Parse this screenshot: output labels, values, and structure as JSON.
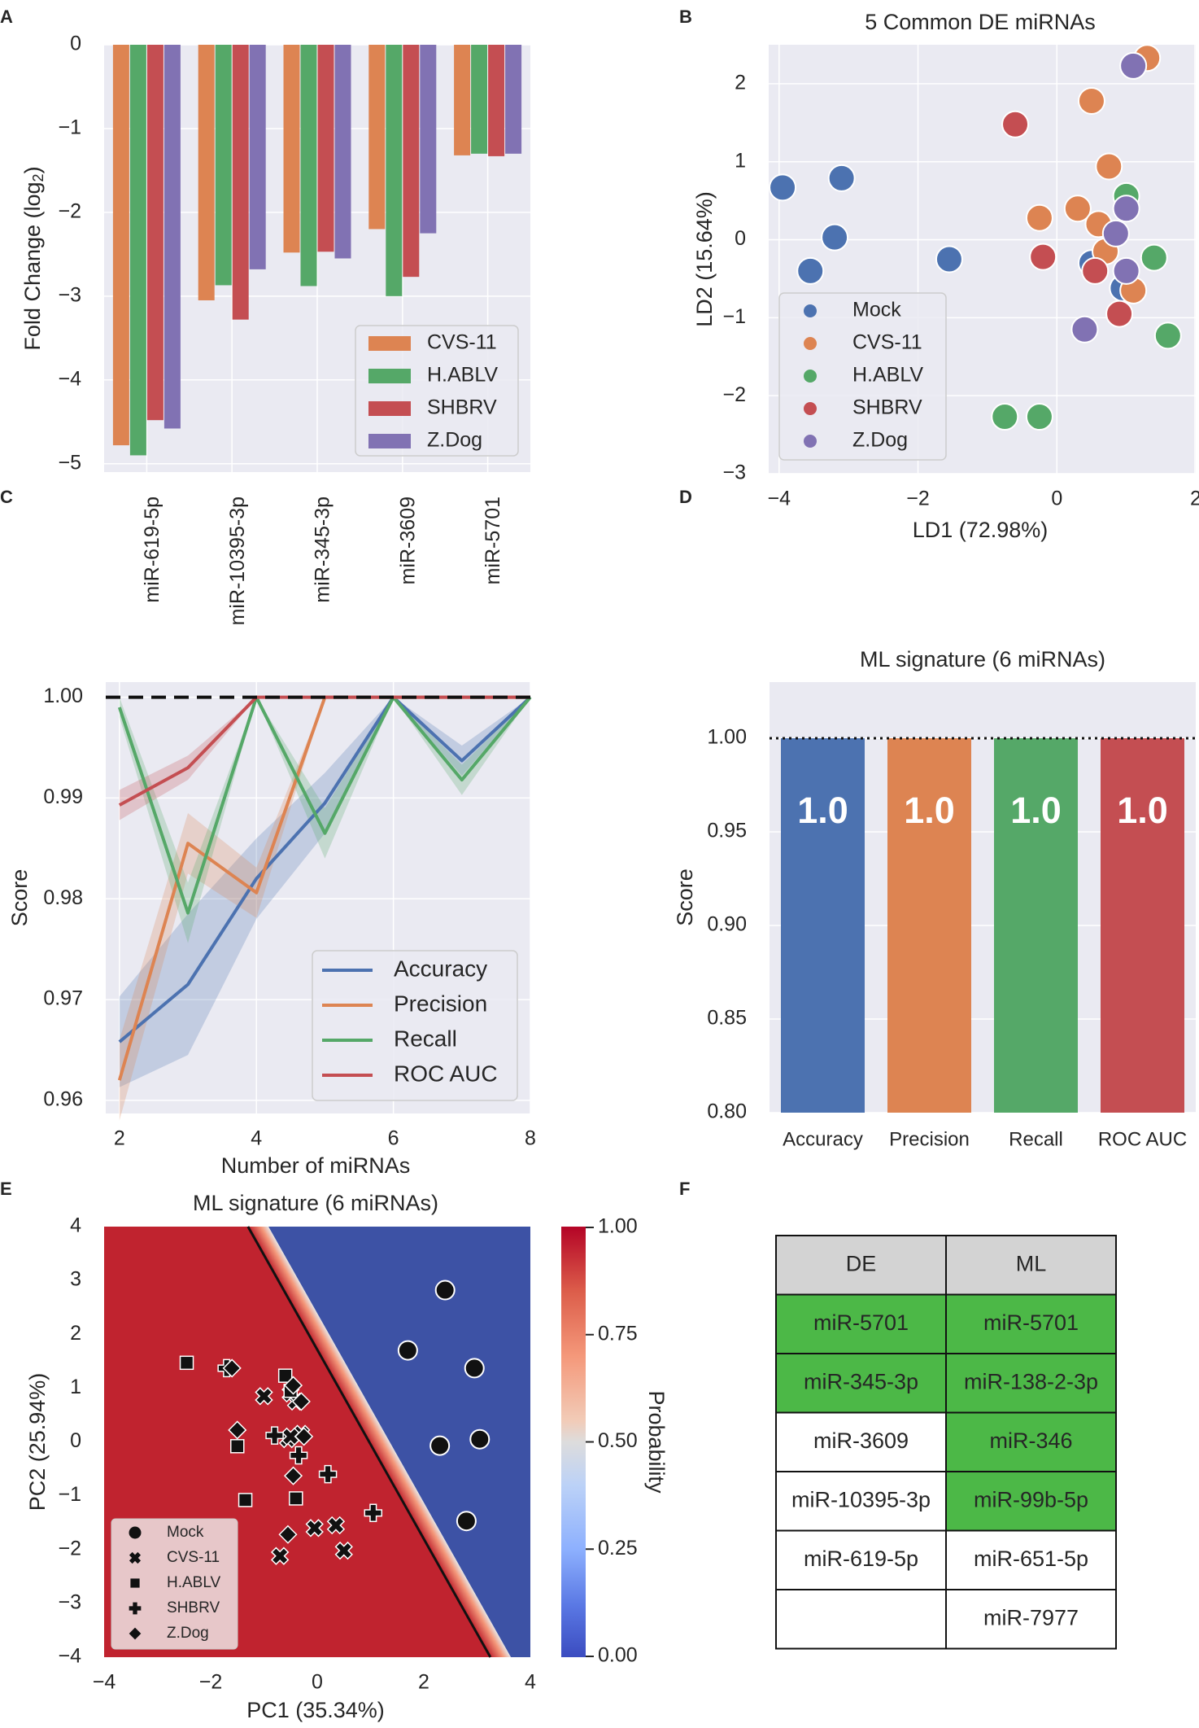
{
  "colors": {
    "blue": "#4c72b0",
    "orange": "#dd8452",
    "green": "#55a868",
    "red": "#c44e52",
    "purple": "#8172b3",
    "panel_bg": "#eaeaf2",
    "grid": "#ffffff",
    "green_cell": "#4cb847",
    "header_cell": "#d3d3d3",
    "region_red": "#c0232f",
    "region_blue": "#3d52a5"
  },
  "chart_data": [
    {
      "panel": "A",
      "type": "bar",
      "title": "",
      "xlabel": "",
      "ylabel_main": "Fold Change (log",
      "ylabel_sub": "2",
      "ylabel_end": ")",
      "ylim": [
        -5.1,
        0
      ],
      "yticks": [
        0,
        -1,
        -2,
        -3,
        -4,
        -5
      ],
      "categories": [
        "miR-619-5p",
        "miR-10395-3p",
        "miR-345-3p",
        "miR-3609",
        "miR-5701"
      ],
      "series": [
        {
          "name": "CVS-11",
          "color": "orange",
          "values": [
            -4.78,
            -3.05,
            -2.48,
            -2.2,
            -1.32
          ]
        },
        {
          "name": "H.ABLV",
          "color": "green",
          "values": [
            -4.9,
            -2.87,
            -2.88,
            -3.0,
            -1.3
          ]
        },
        {
          "name": "SHBRV",
          "color": "red",
          "values": [
            -4.48,
            -3.28,
            -2.47,
            -2.77,
            -1.33
          ]
        },
        {
          "name": "Z.Dog",
          "color": "purple",
          "values": [
            -4.58,
            -2.68,
            -2.55,
            -2.25,
            -1.3
          ]
        }
      ],
      "legend": "bottom-right"
    },
    {
      "panel": "B",
      "type": "scatter",
      "title": "5 Common DE miRNAs",
      "xlabel": "LD1 (72.98%)",
      "ylabel": "LD2 (15.64%)",
      "xlim": [
        -4.15,
        2
      ],
      "ylim": [
        -3,
        2.5
      ],
      "xticks": [
        -4,
        -2,
        0,
        2
      ],
      "yticks": [
        2,
        1,
        0,
        -1,
        -2,
        -3
      ],
      "series": [
        {
          "name": "Mock",
          "color": "blue",
          "points": [
            [
              -3.95,
              0.67
            ],
            [
              -3.1,
              0.79
            ],
            [
              -3.2,
              0.03
            ],
            [
              -3.55,
              -0.4
            ],
            [
              -1.55,
              -0.25
            ],
            [
              0.5,
              -0.3
            ],
            [
              0.95,
              -0.62
            ]
          ]
        },
        {
          "name": "CVS-11",
          "color": "orange",
          "points": [
            [
              1.3,
              2.33
            ],
            [
              0.5,
              1.78
            ],
            [
              0.75,
              0.94
            ],
            [
              0.3,
              0.4
            ],
            [
              -0.25,
              0.28
            ],
            [
              0.6,
              0.2
            ],
            [
              0.7,
              -0.15
            ],
            [
              1.1,
              -0.65
            ]
          ]
        },
        {
          "name": "H.ABLV",
          "color": "green",
          "points": [
            [
              1.0,
              0.56
            ],
            [
              1.4,
              -0.23
            ],
            [
              1.6,
              -1.23
            ],
            [
              -0.75,
              -2.27
            ],
            [
              -0.25,
              -2.27
            ]
          ]
        },
        {
          "name": "SHBRV",
          "color": "red",
          "points": [
            [
              -0.6,
              1.48
            ],
            [
              -0.2,
              -0.22
            ],
            [
              0.55,
              -0.4
            ],
            [
              0.9,
              -0.95
            ]
          ]
        },
        {
          "name": "Z.Dog",
          "color": "purple",
          "points": [
            [
              1.1,
              2.23
            ],
            [
              1.0,
              0.4
            ],
            [
              0.85,
              0.08
            ],
            [
              1.0,
              -0.4
            ],
            [
              0.4,
              -1.15
            ]
          ]
        }
      ],
      "legend": "lower-left"
    },
    {
      "panel": "C",
      "type": "line",
      "title": "",
      "xlabel": "Number of miRNAs",
      "ylabel": "Score",
      "xlim": [
        1.8,
        8
      ],
      "ylim": [
        0.9587,
        1.0015
      ],
      "xticks": [
        2,
        4,
        6,
        8
      ],
      "yticks": [
        1.0,
        0.99,
        0.98,
        0.97,
        0.96
      ],
      "x": [
        2,
        3,
        4,
        5,
        6,
        7,
        8
      ],
      "reference_line": 1.0,
      "series": [
        {
          "name": "Accuracy",
          "color": "blue",
          "values": [
            0.9658,
            0.9715,
            0.982,
            0.9895,
            1.0,
            0.9937,
            1.0
          ],
          "band": [
            0.0045,
            0.007,
            0.004,
            0.003,
            0.0,
            0.0015,
            0.0
          ]
        },
        {
          "name": "Precision",
          "color": "orange",
          "values": [
            0.962,
            0.9855,
            0.9806,
            1.0,
            1.0,
            1.0,
            1.0
          ],
          "band": [
            0.004,
            0.003,
            0.0025,
            0.0,
            0.0,
            0.0,
            0.0
          ]
        },
        {
          "name": "Recall",
          "color": "green",
          "values": [
            0.999,
            0.9786,
            1.0,
            0.9865,
            1.0,
            0.9918,
            1.0
          ],
          "band": [
            0.001,
            0.003,
            0.0,
            0.0025,
            0.0,
            0.0015,
            0.0
          ]
        },
        {
          "name": "ROC AUC",
          "color": "red",
          "values": [
            0.9893,
            0.993,
            1.0,
            1.0,
            1.0,
            1.0,
            1.0
          ],
          "band": [
            0.0015,
            0.0012,
            0.0,
            0.0,
            0.0,
            0.0,
            0.0
          ]
        }
      ],
      "legend": "bottom-right"
    },
    {
      "panel": "D",
      "type": "bar",
      "title": "ML signature (6 miRNAs)",
      "xlabel": "",
      "ylabel": "Score",
      "ylim": [
        0.8,
        1.03
      ],
      "yticks": [
        1.0,
        0.95,
        0.9,
        0.85,
        0.8
      ],
      "categories": [
        "Accuracy",
        "Precision",
        "Recall",
        "ROC AUC"
      ],
      "values": [
        1.0,
        1.0,
        1.0,
        1.0
      ],
      "bar_colors": [
        "blue",
        "orange",
        "green",
        "red"
      ],
      "data_labels": [
        "1.0",
        "1.0",
        "1.0",
        "1.0"
      ],
      "reference_line": 1.0
    },
    {
      "panel": "E",
      "type": "scatter",
      "title": "ML signature (6 miRNAs)",
      "xlabel": "PC1 (35.34%)",
      "ylabel": "PC2 (25.94%)",
      "xlim": [
        -4,
        4
      ],
      "ylim": [
        -4,
        4
      ],
      "xticks": [
        -4,
        -2,
        0,
        2,
        4
      ],
      "yticks": [
        4,
        3,
        2,
        1,
        0,
        -1,
        -2,
        -3,
        -4
      ],
      "decision_boundary": {
        "p1": [
          -1.3,
          4
        ],
        "p2": [
          3.25,
          -4
        ]
      },
      "colorbar": {
        "label": "Probability",
        "range": [
          0,
          1
        ],
        "ticks": [
          "1.00",
          "0.75",
          "0.50",
          "0.25",
          "0.00"
        ]
      },
      "series": [
        {
          "name": "Mock",
          "marker": "circle",
          "points": [
            [
              2.4,
              2.82
            ],
            [
              1.7,
              1.7
            ],
            [
              2.95,
              1.37
            ],
            [
              2.3,
              -0.07
            ],
            [
              3.05,
              0.05
            ],
            [
              2.8,
              -1.47
            ]
          ]
        },
        {
          "name": "CVS-11",
          "marker": "x",
          "points": [
            [
              -1.0,
              0.85
            ],
            [
              -0.4,
              0.75
            ],
            [
              -0.3,
              0.15
            ],
            [
              -0.55,
              0.05
            ],
            [
              -0.7,
              -2.12
            ],
            [
              -0.05,
              -1.6
            ],
            [
              0.35,
              -1.55
            ],
            [
              0.5,
              -2.02
            ],
            [
              -0.5,
              0.1
            ],
            [
              -0.5,
              0.9
            ]
          ]
        },
        {
          "name": "H.ABLV",
          "marker": "square",
          "points": [
            [
              -2.45,
              1.47
            ],
            [
              -0.6,
              1.23
            ],
            [
              -1.5,
              -0.08
            ],
            [
              -1.35,
              -1.08
            ],
            [
              -0.4,
              -1.05
            ],
            [
              -0.5,
              0.95
            ]
          ]
        },
        {
          "name": "SHBRV",
          "marker": "plus",
          "points": [
            [
              -1.7,
              1.37
            ],
            [
              -0.8,
              0.12
            ],
            [
              0.2,
              -0.6
            ],
            [
              1.05,
              -1.32
            ],
            [
              -0.35,
              -0.25
            ]
          ]
        },
        {
          "name": "Z.Dog",
          "marker": "diamond",
          "points": [
            [
              -1.6,
              1.37
            ],
            [
              -1.5,
              0.22
            ],
            [
              -0.45,
              1.05
            ],
            [
              -0.25,
              0.1
            ],
            [
              -0.45,
              -0.63
            ],
            [
              -0.55,
              -1.72
            ],
            [
              -0.3,
              0.75
            ]
          ]
        }
      ],
      "legend": "lower-left"
    }
  ],
  "panel_labels": [
    "A",
    "B",
    "C",
    "D",
    "E",
    "F"
  ],
  "table": {
    "headers": [
      "DE",
      "ML"
    ],
    "rows": [
      [
        "miR-5701",
        "miR-5701"
      ],
      [
        "miR-345-3p",
        "miR-138-2-3p"
      ],
      [
        "miR-3609",
        "miR-346"
      ],
      [
        "miR-10395-3p",
        "miR-99b-5p"
      ],
      [
        "miR-619-5p",
        "miR-651-5p"
      ],
      [
        "",
        "miR-7977"
      ]
    ],
    "highlight": [
      [
        true,
        true
      ],
      [
        true,
        true
      ],
      [
        false,
        true
      ],
      [
        false,
        true
      ],
      [
        false,
        false
      ],
      [
        false,
        false
      ]
    ]
  }
}
